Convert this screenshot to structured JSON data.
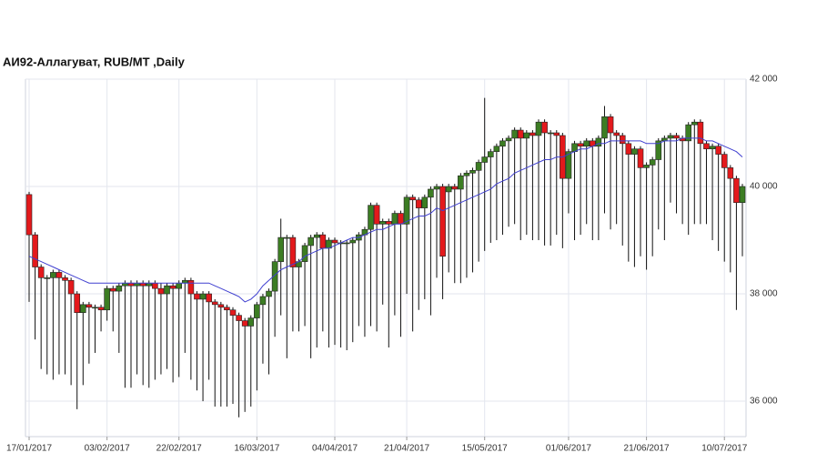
{
  "chart_data": {
    "type": "candlestick",
    "title": "АИ92-Аллагуват,  RUB/MT ,Daily",
    "categories": [
      "17/01/2017",
      null,
      null,
      null,
      null,
      null,
      null,
      null,
      null,
      null,
      null,
      null,
      null,
      "03/02/2017",
      null,
      null,
      null,
      null,
      null,
      null,
      null,
      null,
      null,
      null,
      null,
      "22/02/2017",
      null,
      null,
      null,
      null,
      null,
      null,
      null,
      null,
      null,
      null,
      null,
      null,
      "16/03/2017",
      null,
      null,
      null,
      null,
      null,
      null,
      null,
      null,
      null,
      null,
      null,
      null,
      "04/04/2017",
      null,
      null,
      null,
      null,
      null,
      null,
      null,
      null,
      null,
      null,
      null,
      "21/04/2017",
      null,
      null,
      null,
      null,
      null,
      null,
      null,
      null,
      null,
      null,
      null,
      null,
      "15/05/2017",
      null,
      null,
      null,
      null,
      null,
      null,
      null,
      null,
      null,
      null,
      null,
      null,
      null,
      "01/06/2017",
      null,
      null,
      null,
      null,
      null,
      null,
      null,
      null,
      null,
      null,
      null,
      null,
      "21/06/2017",
      null,
      null,
      null,
      null,
      null,
      null,
      null,
      null,
      null,
      null,
      null,
      null,
      "10/07/2017",
      null,
      null,
      null
    ],
    "open": [
      39850,
      39100,
      38500,
      38300,
      38300,
      38400,
      38300,
      38250,
      38000,
      37650,
      37800,
      37750,
      37750,
      37700,
      38100,
      38050,
      38150,
      38200,
      38150,
      38200,
      38150,
      38200,
      38100,
      38000,
      38150,
      38100,
      38200,
      38250,
      38000,
      37900,
      38000,
      37850,
      37800,
      37750,
      37700,
      37600,
      37500,
      37400,
      37550,
      37800,
      37950,
      38050,
      38600,
      39050,
      39050,
      38500,
      38600,
      38900,
      39050,
      39100,
      38850,
      39000,
      38950,
      38950,
      38950,
      39000,
      39100,
      39200,
      39650,
      39300,
      39350,
      39300,
      39500,
      39300,
      39800,
      39750,
      39600,
      39800,
      39950,
      40000,
      39900,
      40000,
      39950,
      40200,
      40250,
      40300,
      40450,
      40550,
      40650,
      40750,
      40850,
      40900,
      41050,
      40900,
      41000,
      40950,
      41200,
      41000,
      41000,
      40950,
      40150,
      40650,
      40800,
      40750,
      40850,
      40750,
      40900,
      41300,
      41000,
      40950,
      40800,
      40600,
      40700,
      40350,
      40400,
      40500,
      40850,
      40900,
      40950,
      40900,
      40850,
      41150,
      41200,
      40800,
      40700,
      40750,
      40600,
      40350,
      40150,
      39700
    ],
    "high": [
      39900,
      39150,
      38550,
      38350,
      38450,
      38450,
      38350,
      38300,
      38050,
      37850,
      37850,
      37800,
      37800,
      38150,
      38150,
      38200,
      38250,
      38250,
      38250,
      38250,
      38250,
      38250,
      38200,
      38200,
      38200,
      38250,
      38300,
      38300,
      38050,
      38050,
      38050,
      37900,
      37850,
      37800,
      37750,
      37650,
      37550,
      37600,
      37850,
      38000,
      38100,
      38650,
      39400,
      39100,
      39100,
      38650,
      38950,
      39100,
      39150,
      39150,
      39050,
      39050,
      39000,
      39000,
      39050,
      39150,
      39250,
      39700,
      39700,
      39400,
      39400,
      39550,
      39550,
      39850,
      39850,
      39800,
      39850,
      40000,
      40050,
      40050,
      40050,
      40050,
      40250,
      40300,
      40350,
      40500,
      41650,
      40700,
      40800,
      40900,
      40950,
      41100,
      41100,
      41050,
      41050,
      41250,
      41250,
      41050,
      41050,
      41000,
      40700,
      40850,
      40850,
      40900,
      40900,
      40950,
      41500,
      41350,
      41050,
      41000,
      40850,
      40750,
      40750,
      40450,
      40550,
      40900,
      40950,
      41000,
      41000,
      40950,
      41200,
      41250,
      41250,
      40850,
      40800,
      40800,
      40650,
      40400,
      40200,
      40050
    ],
    "low": [
      37850,
      37150,
      36600,
      36500,
      36400,
      36500,
      36500,
      36300,
      35850,
      36300,
      36700,
      36900,
      37300,
      37500,
      37300,
      36900,
      36250,
      36250,
      36500,
      36300,
      36250,
      36400,
      36500,
      36600,
      36350,
      36450,
      36900,
      36400,
      36200,
      36000,
      36400,
      35900,
      35900,
      35900,
      35950,
      35700,
      35800,
      35900,
      36200,
      36700,
      36500,
      37200,
      37600,
      36800,
      37300,
      37300,
      37400,
      36800,
      37000,
      37300,
      37000,
      37050,
      37000,
      36950,
      37100,
      37400,
      37200,
      37400,
      37300,
      37800,
      37000,
      37600,
      37200,
      38000,
      37300,
      37700,
      37900,
      37600,
      38300,
      37900,
      38400,
      38200,
      38200,
      38300,
      38400,
      38600,
      38800,
      38950,
      39000,
      39100,
      39250,
      39300,
      39000,
      39100,
      39000,
      39000,
      38900,
      38900,
      39100,
      38850,
      39500,
      39000,
      39100,
      39300,
      39000,
      39000,
      39500,
      39200,
      39300,
      38900,
      38600,
      38500,
      38700,
      38450,
      38700,
      39200,
      39000,
      39700,
      39500,
      39300,
      39100,
      39300,
      39300,
      39300,
      39000,
      38800,
      38600,
      38400,
      37700,
      38700
    ],
    "close": [
      39100,
      38500,
      38300,
      38300,
      38400,
      38300,
      38250,
      38000,
      37650,
      37800,
      37750,
      37750,
      37700,
      38100,
      38050,
      38150,
      38200,
      38150,
      38200,
      38150,
      38200,
      38100,
      38000,
      38150,
      38100,
      38200,
      38250,
      38000,
      37900,
      38000,
      37850,
      37800,
      37750,
      37700,
      37600,
      37500,
      37400,
      37550,
      37800,
      37950,
      38050,
      38600,
      39050,
      39050,
      38500,
      38600,
      38900,
      39050,
      39100,
      38850,
      39000,
      38950,
      38950,
      38950,
      39000,
      39100,
      39200,
      39650,
      39300,
      39350,
      39300,
      39500,
      39300,
      39800,
      39750,
      39600,
      39800,
      39950,
      40000,
      38700,
      40000,
      39950,
      40200,
      40250,
      40300,
      40450,
      40550,
      40650,
      40750,
      40850,
      40900,
      41050,
      40900,
      41000,
      40950,
      41200,
      41000,
      41000,
      40950,
      40150,
      40650,
      40800,
      40750,
      40850,
      40750,
      40900,
      41300,
      41000,
      40950,
      40800,
      40600,
      40700,
      40350,
      40400,
      40500,
      40850,
      40900,
      40950,
      40900,
      40850,
      41150,
      41200,
      40800,
      40700,
      40750,
      40600,
      40350,
      40150,
      39700,
      40000
    ],
    "up_color": "#3c7d23",
    "down_color": "#e3191c",
    "moving_average": {
      "color": "#4040d0",
      "values": [
        38700,
        38650,
        38600,
        38550,
        38500,
        38450,
        38400,
        38350,
        38300,
        38250,
        38200,
        38200,
        38200,
        38200,
        38200,
        38200,
        38200,
        38200,
        38200,
        38200,
        38200,
        38200,
        38200,
        38200,
        38200,
        38200,
        38200,
        38200,
        38200,
        38200,
        38200,
        38150,
        38100,
        38050,
        38000,
        37950,
        37850,
        37900,
        38000,
        38150,
        38250,
        38350,
        38450,
        38500,
        38550,
        38600,
        38700,
        38750,
        38800,
        38850,
        38850,
        38900,
        38950,
        39000,
        39050,
        39050,
        39100,
        39150,
        39200,
        39200,
        39250,
        39300,
        39300,
        39350,
        39400,
        39450,
        39450,
        39500,
        39600,
        39550,
        39600,
        39650,
        39700,
        39750,
        39800,
        39850,
        39900,
        39950,
        40050,
        40100,
        40150,
        40250,
        40300,
        40350,
        40400,
        40450,
        40500,
        40500,
        40550,
        40550,
        40600,
        40650,
        40700,
        40700,
        40750,
        40800,
        40800,
        40850,
        40850,
        40850,
        40850,
        40850,
        40850,
        40800,
        40800,
        40800,
        40850,
        40850,
        40850,
        40900,
        40900,
        40900,
        40900,
        40850,
        40850,
        40800,
        40750,
        40700,
        40650,
        40550
      ]
    },
    "ylim": [
      35340,
      42000
    ],
    "yticks": [
      {
        "value": 36000,
        "label": "36 000"
      },
      {
        "value": 38000,
        "label": "38 000"
      },
      {
        "value": 40000,
        "label": "40 000"
      },
      {
        "value": 42000,
        "label": "42 000"
      }
    ],
    "grid": true
  }
}
